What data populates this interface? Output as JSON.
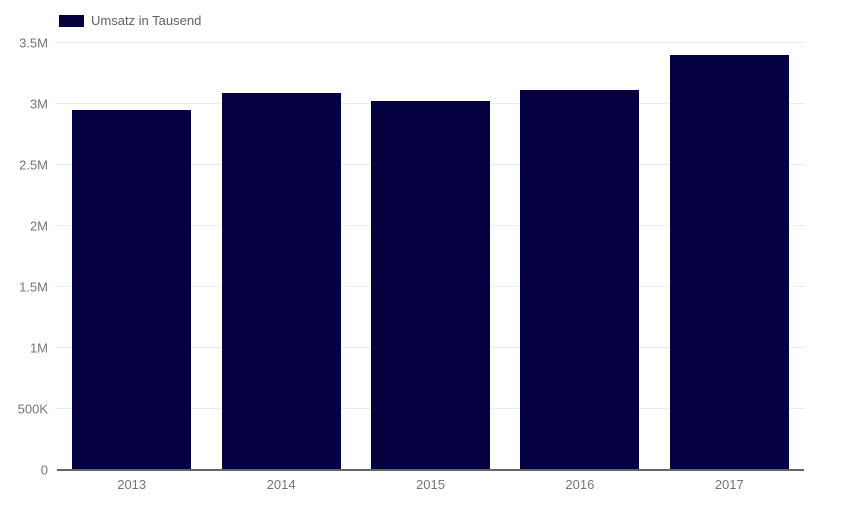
{
  "colors": {
    "bar": "#050040",
    "gridline": "#ececec",
    "axis_line": "#666666",
    "axis_text": "#757575",
    "legend_text": "#616161",
    "background": "#ffffff"
  },
  "legend": {
    "label": "Umsatz in Tausend"
  },
  "chart_data": {
    "type": "bar",
    "title": "",
    "xlabel": "",
    "ylabel": "",
    "categories": [
      "2013",
      "2014",
      "2015",
      "2016",
      "2017"
    ],
    "series": [
      {
        "name": "Umsatz in Tausend",
        "values": [
          2950000,
          3090000,
          3020000,
          3110000,
          3400000
        ]
      }
    ],
    "ylim": [
      0,
      3500000
    ],
    "yticks": [
      {
        "label": "0",
        "value": 0
      },
      {
        "label": "500K",
        "value": 500000
      },
      {
        "label": "1M",
        "value": 1000000
      },
      {
        "label": "1.5M",
        "value": 1500000
      },
      {
        "label": "2M",
        "value": 2000000
      },
      {
        "label": "2.5M",
        "value": 2500000
      },
      {
        "label": "3M",
        "value": 3000000
      },
      {
        "label": "3.5M",
        "value": 3500000
      }
    ],
    "grid": true,
    "legend_position": "top-left"
  }
}
